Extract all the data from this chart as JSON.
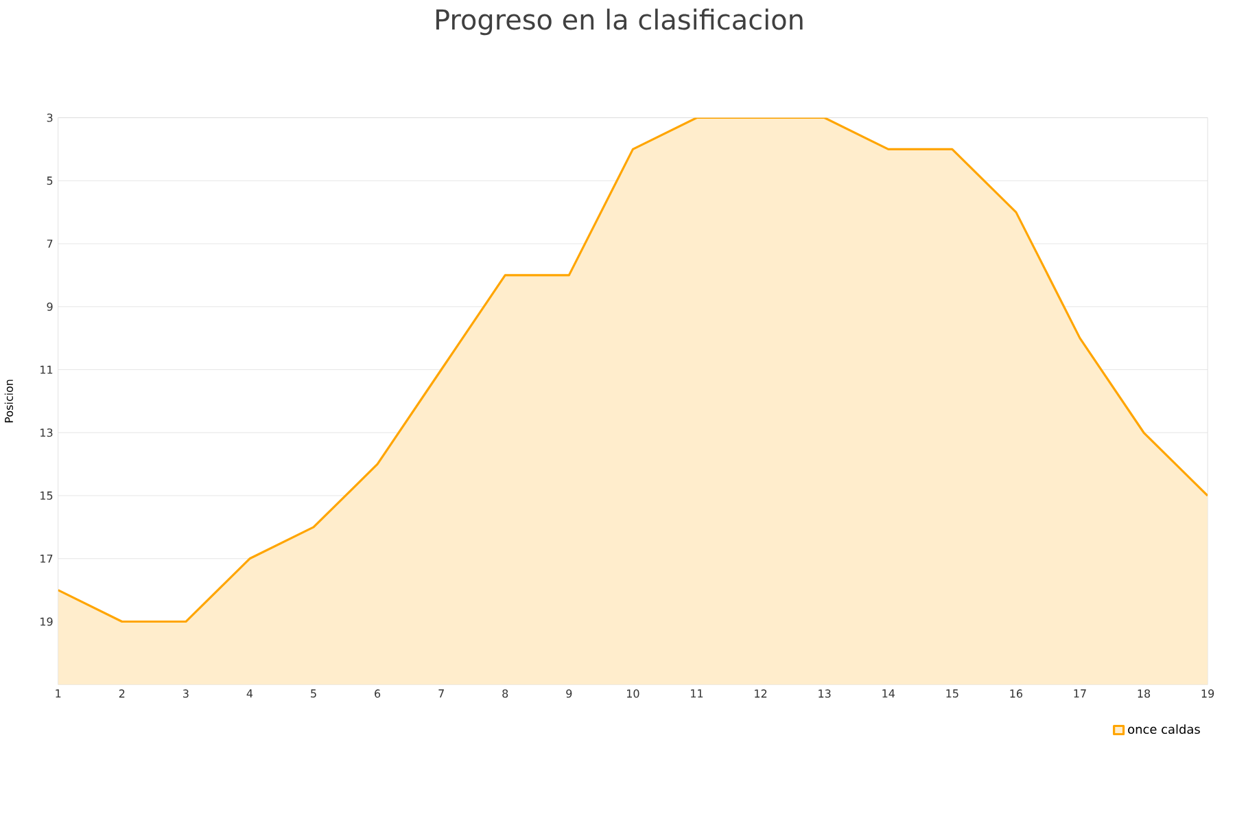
{
  "chart_data": {
    "type": "area",
    "title": "Progreso en la clasificacion",
    "ylabel": "Posicion",
    "x": [
      1,
      2,
      3,
      4,
      5,
      6,
      7,
      8,
      9,
      10,
      11,
      12,
      13,
      14,
      15,
      16,
      17,
      18,
      19
    ],
    "series": [
      {
        "name": "once caldas",
        "color": "#ffa500",
        "values": [
          18,
          19,
          19,
          17,
          16,
          14,
          11,
          8,
          8,
          4,
          3,
          3,
          3,
          4,
          4,
          6,
          10,
          13,
          15
        ]
      }
    ],
    "xlim": [
      1,
      19
    ],
    "xticks": [
      1,
      2,
      3,
      4,
      5,
      6,
      7,
      8,
      9,
      10,
      11,
      12,
      13,
      14,
      15,
      16,
      17,
      18,
      19
    ],
    "ylim": [
      21,
      3
    ],
    "yticks": [
      3,
      5,
      7,
      9,
      11,
      13,
      15,
      17,
      19
    ],
    "grid": "y",
    "legend": "bottom right",
    "marker": "none",
    "line_style": "solid"
  }
}
